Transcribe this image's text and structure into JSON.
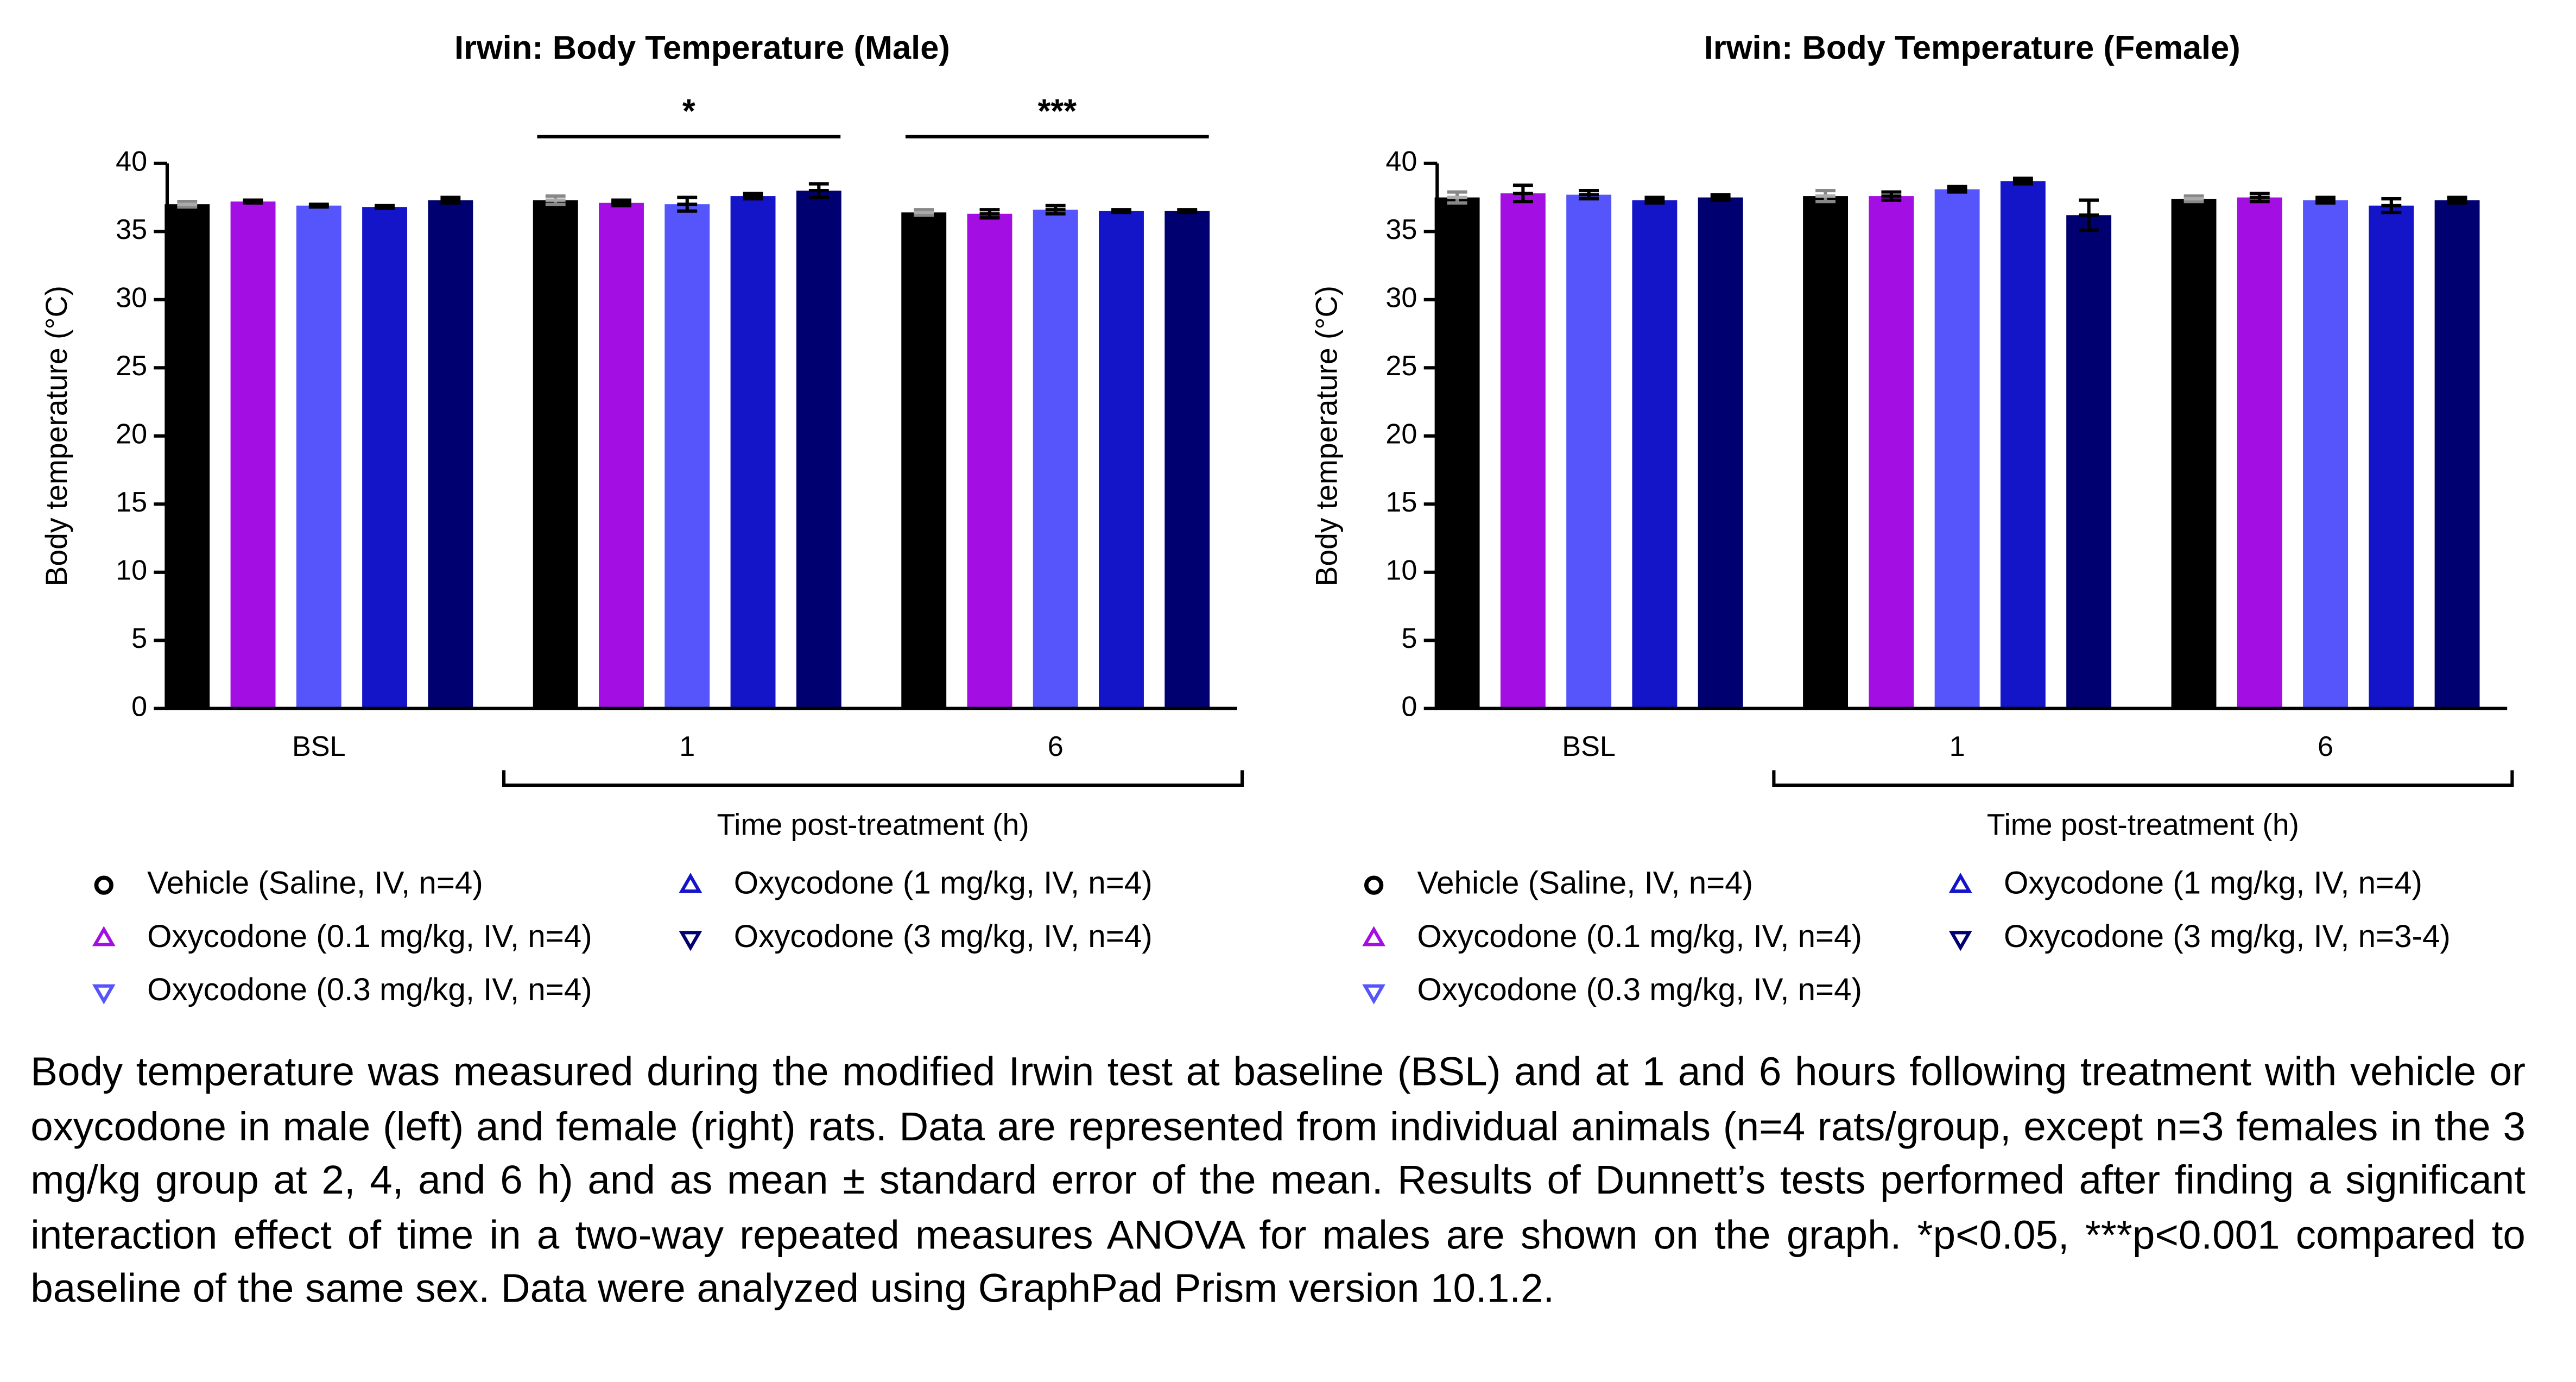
{
  "chart_data": [
    {
      "type": "bar",
      "title": "Irwin: Body Temperature (Male)",
      "ylabel": "Body temperature (°C)",
      "xlabel": "Time post-treatment (h)",
      "categories": [
        "BSL",
        "1",
        "6"
      ],
      "ylim": [
        0,
        40
      ],
      "yticks": [
        0,
        5,
        10,
        15,
        20,
        25,
        30,
        35,
        40
      ],
      "series": [
        {
          "name": "Vehicle (Saline, IV, n=4)",
          "color": "#000000",
          "marker": "circle",
          "values": [
            37.0,
            37.3,
            36.4
          ],
          "errors": [
            0.2,
            0.3,
            0.2
          ]
        },
        {
          "name": "Oxycodone (0.1 mg/kg, IV, n=4)",
          "color": "#a30fe3",
          "marker": "triangle-up",
          "values": [
            37.2,
            37.1,
            36.3
          ],
          "errors": [
            0.1,
            0.2,
            0.3
          ]
        },
        {
          "name": "Oxycodone (0.3 mg/kg, IV, n=4)",
          "color": "#5555fb",
          "marker": "triangle-down",
          "values": [
            36.9,
            37.0,
            36.6
          ],
          "errors": [
            0.1,
            0.5,
            0.3
          ]
        },
        {
          "name": "Oxycodone (1 mg/kg, IV, n=4)",
          "color": "#1414c8",
          "marker": "triangle-up",
          "values": [
            36.8,
            37.6,
            36.5
          ],
          "errors": [
            0.1,
            0.2,
            0.1
          ]
        },
        {
          "name": "Oxycodone (3 mg/kg, IV, n=4)",
          "color": "#000070",
          "marker": "triangle-down",
          "values": [
            37.3,
            38.0,
            36.5
          ],
          "errors": [
            0.2,
            0.5,
            0.1
          ]
        }
      ],
      "annotations": [
        {
          "text": "*",
          "category": "1"
        },
        {
          "text": "***",
          "category": "6"
        }
      ]
    },
    {
      "type": "bar",
      "title": "Irwin: Body Temperature (Female)",
      "ylabel": "Body temperature (°C)",
      "xlabel": "Time post-treatment (h)",
      "categories": [
        "BSL",
        "1",
        "6"
      ],
      "ylim": [
        0,
        40
      ],
      "yticks": [
        0,
        5,
        10,
        15,
        20,
        25,
        30,
        35,
        40
      ],
      "series": [
        {
          "name": "Vehicle (Saline, IV, n=4)",
          "color": "#000000",
          "marker": "circle",
          "values": [
            37.5,
            37.6,
            37.4
          ],
          "errors": [
            0.4,
            0.4,
            0.2
          ]
        },
        {
          "name": "Oxycodone (0.1 mg/kg, IV, n=4)",
          "color": "#a30fe3",
          "marker": "triangle-up",
          "values": [
            37.8,
            37.6,
            37.5
          ],
          "errors": [
            0.6,
            0.3,
            0.3
          ]
        },
        {
          "name": "Oxycodone (0.3 mg/kg, IV, n=4)",
          "color": "#5555fb",
          "marker": "triangle-down",
          "values": [
            37.7,
            38.1,
            37.3
          ],
          "errors": [
            0.3,
            0.2,
            0.2
          ]
        },
        {
          "name": "Oxycodone (1 mg/kg, IV, n=4)",
          "color": "#1414c8",
          "marker": "triangle-up",
          "values": [
            37.3,
            38.7,
            36.9
          ],
          "errors": [
            0.2,
            0.2,
            0.5
          ]
        },
        {
          "name": "Oxycodone (3 mg/kg, IV, n=3-4)",
          "color": "#000070",
          "marker": "triangle-down",
          "values": [
            37.5,
            36.2,
            37.3
          ],
          "errors": [
            0.2,
            1.1,
            0.2
          ]
        }
      ],
      "annotations": []
    }
  ],
  "caption": "Body temperature was measured during the modified Irwin test at baseline (BSL) and at 1 and 6 hours following treatment with vehicle or oxycodone in male (left) and female (right) rats. Data are represented from individual animals (n=4 rats/group, except n=3 females in the 3 mg/kg group at 2, 4, and 6 h) and as mean ± standard error of the mean. Results of Dunnett’s tests performed after finding a significant interaction effect of time in a two-way repeated measures ANOVA for males are shown on the graph. *p<0.05, ***p<0.001 compared to baseline of the same sex. Data were analyzed using GraphPad Prism version 10.1.2."
}
